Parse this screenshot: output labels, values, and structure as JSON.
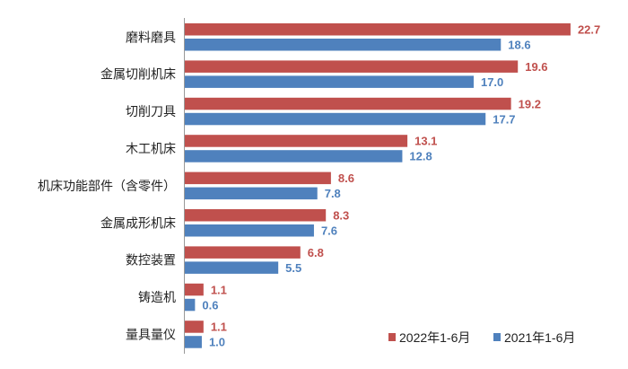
{
  "chart_data": {
    "type": "bar",
    "orientation": "horizontal",
    "title": "",
    "xlabel": "",
    "ylabel": "",
    "xlim": [
      0,
      23
    ],
    "grid": false,
    "legend_position": "bottom-right",
    "categories": [
      "磨料磨具",
      "金属切削机床",
      "切削刀具",
      "木工机床",
      "机床功能部件（含零件）",
      "金属成形机床",
      "数控装置",
      "铸造机",
      "量具量仪"
    ],
    "series": [
      {
        "name": "2022年1-6月",
        "color": "#c0504d",
        "values": [
          22.7,
          19.6,
          19.2,
          13.1,
          8.6,
          8.3,
          6.8,
          1.1,
          1.1
        ],
        "labels": [
          "22.7",
          "19.6",
          "19.2",
          "13.1",
          "8.6",
          "8.3",
          "6.8",
          "1.1",
          "1.1"
        ]
      },
      {
        "name": "2021年1-6月",
        "color": "#4f81bd",
        "values": [
          18.6,
          17.0,
          17.7,
          12.8,
          7.8,
          7.6,
          5.5,
          0.6,
          1.0
        ],
        "labels": [
          "18.6",
          "17.0",
          "17.7",
          "12.8",
          "7.8",
          "7.6",
          "5.5",
          "0.6",
          "1.0"
        ]
      }
    ]
  }
}
